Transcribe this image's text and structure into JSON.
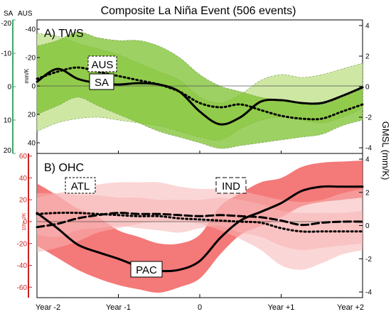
{
  "chart_data": {
    "title": "Composite La Niña Event (506 events)",
    "type": "line",
    "x_ticks": [
      "Year -2",
      "Year -1",
      "0",
      "Year +1",
      "Year +2"
    ],
    "right_axis_label": "GMSL (mm/K)",
    "colors": {
      "tws_dark": "#7cc12f",
      "tws_light": "#c9e59a",
      "ohc_dark": "#f26262",
      "ohc_light": "#f8b4b4",
      "sa_axis": "#3aa86a",
      "ohc_axis": "#cc2222"
    },
    "panels": [
      {
        "label": "A) TWS",
        "left_axis_headers": [
          "SA",
          "AUS"
        ],
        "left_axis_label": "mm/K",
        "left_axis_sa_ticks": [
          "-20",
          "-10",
          "0",
          "10",
          "20"
        ],
        "left_axis_aus_ticks": [
          "-40",
          "-20",
          "0",
          "20",
          "40"
        ],
        "ylim_aus": [
          -47,
          47
        ],
        "right_ticks": [
          "4",
          "2",
          "0",
          "-2",
          "-4"
        ],
        "x": [
          -2,
          -1.75,
          -1.5,
          -1.25,
          -1,
          -0.75,
          -0.5,
          -0.25,
          0,
          0.25,
          0.5,
          0.75,
          1,
          1.25,
          1.5,
          1.75,
          2
        ],
        "series": [
          {
            "name": "SA",
            "style": "solid",
            "values": [
              -3,
              -12,
              -5,
              -2,
              -1,
              -2,
              -1,
              4,
              18,
              27,
              22,
              11,
              10,
              12,
              12,
              7,
              1
            ]
          },
          {
            "name": "AUS",
            "style": "dotted",
            "values": [
              -5,
              -10,
              -13,
              -10,
              -7,
              -4,
              -1,
              4,
              12,
              15,
              13,
              17,
              21,
              23,
              23,
              18,
              13
            ]
          }
        ],
        "bands": [
          {
            "role": "SA range",
            "lower": [
              -37,
              -35,
              -30,
              -26,
              -22,
              -16,
              -10,
              -4,
              8,
              12,
              6,
              -4,
              -8,
              -6,
              -8,
              -12,
              -16
            ],
            "upper": [
              32,
              26,
              23,
              22,
              24,
              26,
              28,
              32,
              36,
              38,
              30,
              24,
              22,
              24,
              26,
              22,
              16
            ]
          },
          {
            "role": "AUS range",
            "lower": [
              -28,
              -32,
              -38,
              -34,
              -32,
              -32,
              -28,
              -20,
              -8,
              0,
              4,
              8,
              10,
              12,
              13,
              8,
              2
            ],
            "upper": [
              20,
              14,
              8,
              14,
              20,
              26,
              32,
              36,
              40,
              44,
              42,
              40,
              38,
              36,
              34,
              28,
              24
            ]
          }
        ],
        "labels": [
          "AUS",
          "SA"
        ]
      },
      {
        "label": "B) OHC",
        "left_axis_label": "10¹⁹ J/K",
        "left_axis_ticks": [
          "60",
          "40",
          "20",
          "0",
          "-20",
          "-40",
          "-60"
        ],
        "ylim": [
          -66,
          66
        ],
        "right_ticks": [
          "4",
          "2",
          "0",
          "-2",
          "-4"
        ],
        "x": [
          -2,
          -1.75,
          -1.5,
          -1.25,
          -1,
          -0.75,
          -0.5,
          -0.25,
          0,
          0.25,
          0.5,
          0.75,
          1,
          1.25,
          1.5,
          1.75,
          2
        ],
        "series": [
          {
            "name": "PAC",
            "style": "solid",
            "values": [
              8,
              -6,
              -21,
              -28,
              -34,
              -41,
              -45,
              -44,
              -36,
              -15,
              1,
              9,
              17,
              28,
              32,
              32,
              32
            ]
          },
          {
            "name": "IND",
            "style": "dashed",
            "values": [
              -5,
              -2,
              3,
              6,
              8,
              7,
              7,
              6,
              5,
              6,
              5,
              4,
              1,
              -3,
              -1,
              0,
              0
            ]
          },
          {
            "name": "ATL",
            "style": "dotted",
            "values": [
              7,
              8,
              8,
              7,
              6,
              5,
              5,
              3,
              2,
              1,
              0,
              -1,
              -6,
              -9,
              -9,
              -9,
              -9
            ]
          }
        ],
        "bands": [
          {
            "role": "PAC range",
            "lower": [
              -22,
              -33,
              -44,
              -52,
              -58,
              -62,
              -65,
              -60,
              -52,
              -30,
              -12,
              -4,
              4,
              14,
              18,
              20,
              22
            ],
            "upper": [
              35,
              24,
              12,
              4,
              -8,
              -14,
              -20,
              -20,
              -12,
              14,
              26,
              36,
              40,
              50,
              54,
              55,
              56
            ]
          },
          {
            "role": "IND range",
            "lower": [
              -28,
              -24,
              -18,
              -10,
              -6,
              -2,
              0,
              0,
              -2,
              -8,
              -16,
              -26,
              -40,
              -44,
              -38,
              -30,
              -26
            ],
            "upper": [
              22,
              26,
              30,
              34,
              36,
              36,
              36,
              32,
              30,
              30,
              28,
              24,
              20,
              18,
              20,
              26,
              30
            ]
          },
          {
            "role": "ATL range",
            "lower": [
              -12,
              -14,
              -8,
              -6,
              -4,
              -6,
              -8,
              -10,
              -6,
              -4,
              -10,
              -14,
              -22,
              -26,
              -24,
              -22,
              -20
            ],
            "upper": [
              26,
              26,
              24,
              24,
              22,
              22,
              20,
              20,
              20,
              22,
              20,
              16,
              10,
              8,
              8,
              8,
              10
            ]
          }
        ],
        "labels": [
          "ATL",
          "IND",
          "PAC"
        ]
      }
    ]
  }
}
